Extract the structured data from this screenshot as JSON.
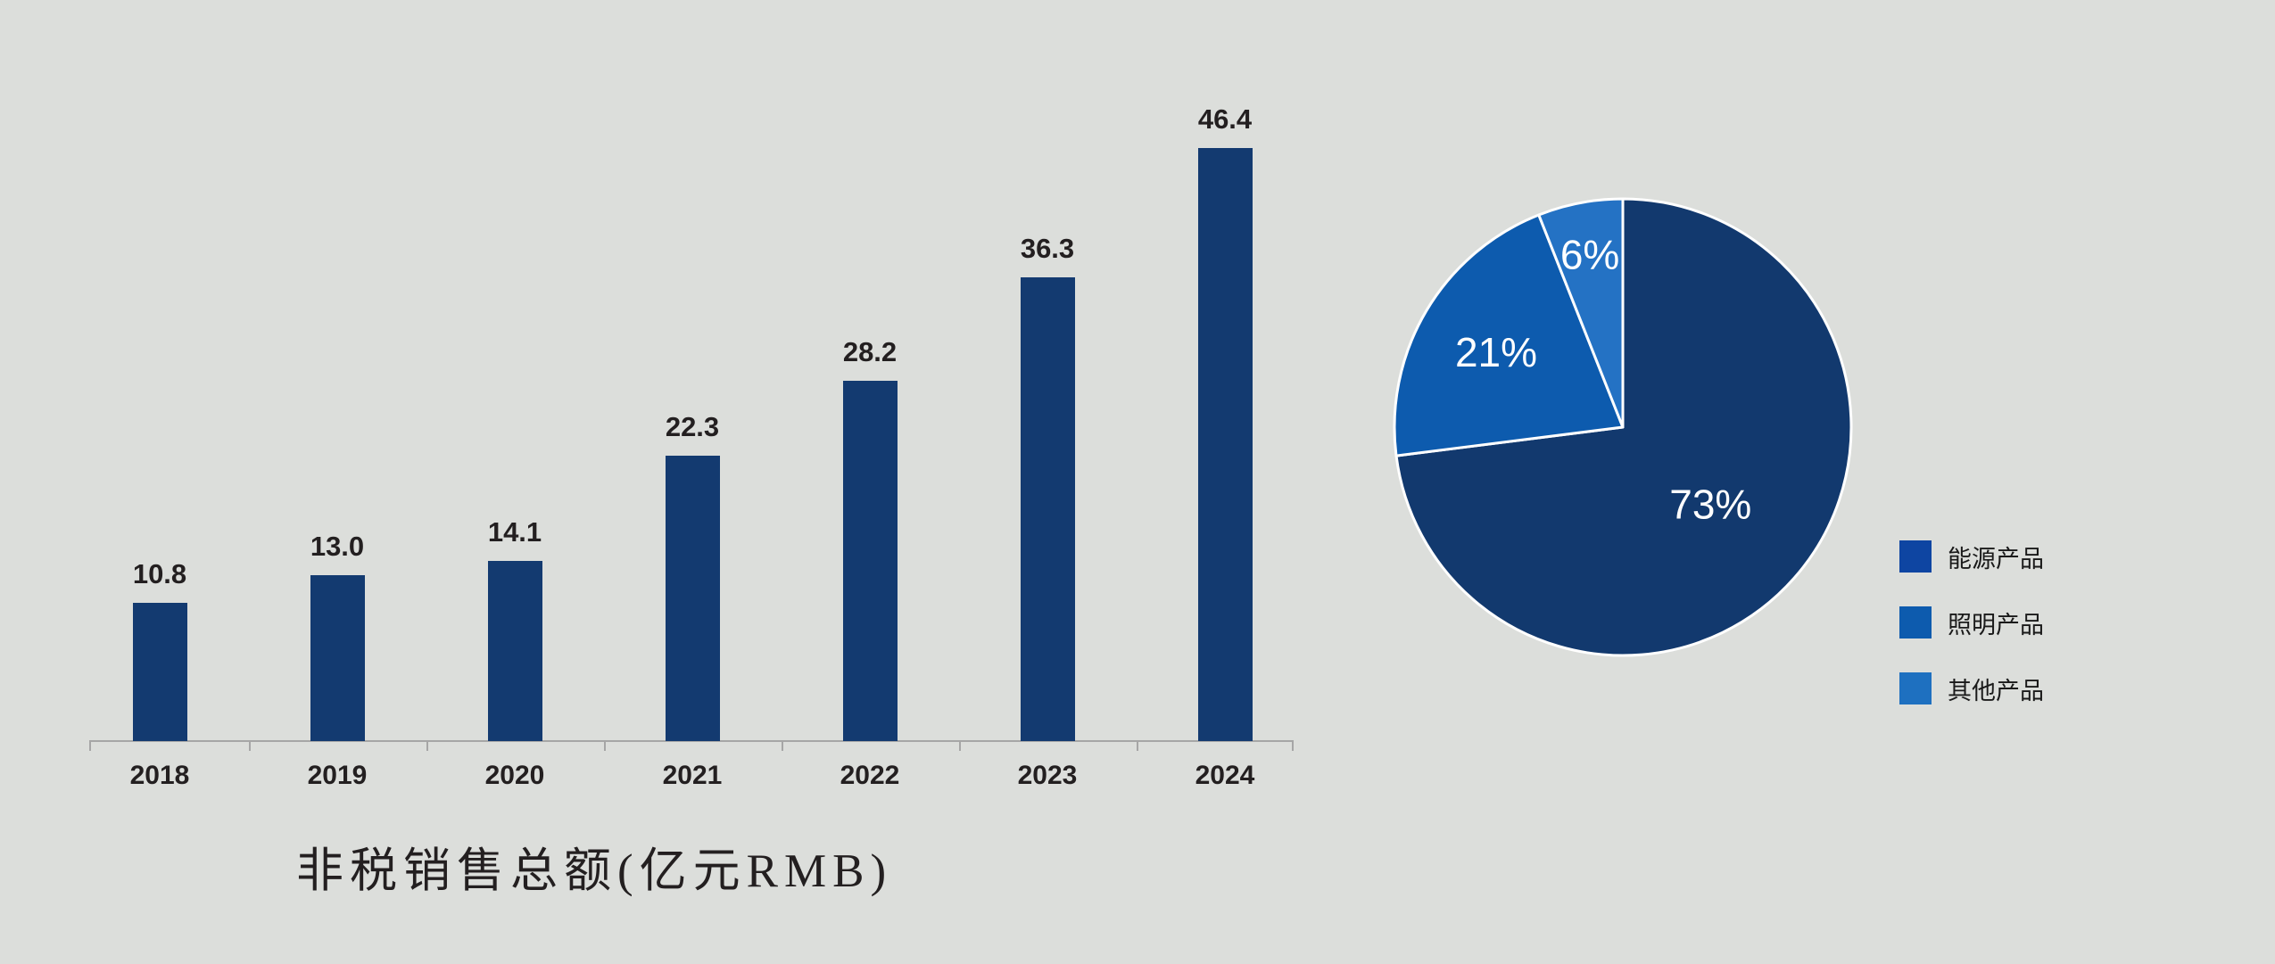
{
  "background_color": "#dcdedb",
  "text_color": "#231f20",
  "chart_data": [
    {
      "type": "bar",
      "title": "非税销售总额(亿元RMB)",
      "categories": [
        "2018",
        "2019",
        "2020",
        "2021",
        "2022",
        "2023",
        "2024"
      ],
      "values": [
        10.8,
        13.0,
        14.1,
        22.3,
        28.2,
        36.3,
        46.4
      ],
      "value_labels": [
        "10.8",
        "13.0",
        "14.1",
        "22.3",
        "28.2",
        "36.3",
        "46.4"
      ],
      "bar_color": "#133a70",
      "label_color": "#231f20",
      "axis_color": "#a6a6a6",
      "ylim": [
        0,
        46.4
      ],
      "grid": false,
      "xlabel": "",
      "ylabel": ""
    },
    {
      "type": "pie",
      "labels": [
        "能源产品",
        "照明产品",
        "其他产品"
      ],
      "values": [
        73,
        21,
        6
      ],
      "percent_labels": [
        "73%",
        "21%",
        "6%"
      ],
      "slice_colors": [
        "#12396e",
        "#0d5bae",
        "#2472c4"
      ],
      "slice_border_color": "#ffffff",
      "percent_label_color": "#ffffff",
      "start_angle": "12-oclock",
      "direction": "clockwise",
      "legend_position": "right",
      "legend": {
        "text_color": "#1a1a1a",
        "items": [
          {
            "label": "能源产品",
            "color": "#0e45a2"
          },
          {
            "label": "照明产品",
            "color": "#0d5bae"
          },
          {
            "label": "其他产品",
            "color": "#1e70c0"
          }
        ]
      }
    }
  ]
}
